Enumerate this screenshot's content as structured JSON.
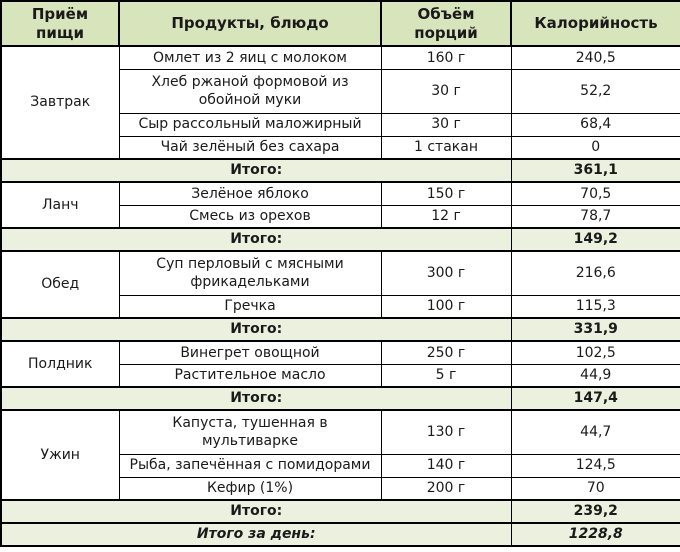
{
  "colors": {
    "header_bg": "#d8e4bc",
    "total_bg": "#ebf1de",
    "border": "#000000",
    "text": "#1a1a1a"
  },
  "table": {
    "headers": [
      "Приём пищи",
      "Продукты, блюдо",
      "Объём порций",
      "Калорийность"
    ],
    "sections": [
      {
        "meal": "Завтрак",
        "items": [
          {
            "dish": "Омлет из 2 яиц с молоком",
            "volume": "160 г",
            "calories": "240,5"
          },
          {
            "dish": "Хлеб ржаной формовой из обойной муки",
            "volume": "30 г",
            "calories": "52,2"
          },
          {
            "dish": "Сыр рассольный маложирный",
            "volume": "30 г",
            "calories": "68,4"
          },
          {
            "dish": "Чай зелёный без сахара",
            "volume": "1 стакан",
            "calories": "0"
          }
        ],
        "total_label": "Итого:",
        "total": "361,1"
      },
      {
        "meal": "Ланч",
        "items": [
          {
            "dish": "Зелёное яблоко",
            "volume": "150 г",
            "calories": "70,5"
          },
          {
            "dish": "Смесь из орехов",
            "volume": "12 г",
            "calories": "78,7"
          }
        ],
        "total_label": "Итого:",
        "total": "149,2"
      },
      {
        "meal": "Обед",
        "items": [
          {
            "dish": "Суп перловый с мясными фрикадельками",
            "volume": "300 г",
            "calories": "216,6"
          },
          {
            "dish": "Гречка",
            "volume": "100 г",
            "calories": "115,3"
          }
        ],
        "total_label": "Итого:",
        "total": "331,9"
      },
      {
        "meal": "Полдник",
        "items": [
          {
            "dish": "Винегрет овощной",
            "volume": "250 г",
            "calories": "102,5"
          },
          {
            "dish": "Растительное масло",
            "volume": "5 г",
            "calories": "44,9"
          }
        ],
        "total_label": "Итого:",
        "total": "147,4"
      },
      {
        "meal": "Ужин",
        "items": [
          {
            "dish": "Капуста, тушенная в мультиварке",
            "volume": "130 г",
            "calories": "44,7"
          },
          {
            "dish": "Рыба, запечённая с помидорами",
            "volume": "140 г",
            "calories": "124,5"
          },
          {
            "dish": "Кефир (1%)",
            "volume": "200 г",
            "calories": "70"
          }
        ],
        "total_label": "Итого:",
        "total": "239,2"
      }
    ],
    "grand_total_label": "Итого за день:",
    "grand_total": "1228,8"
  }
}
